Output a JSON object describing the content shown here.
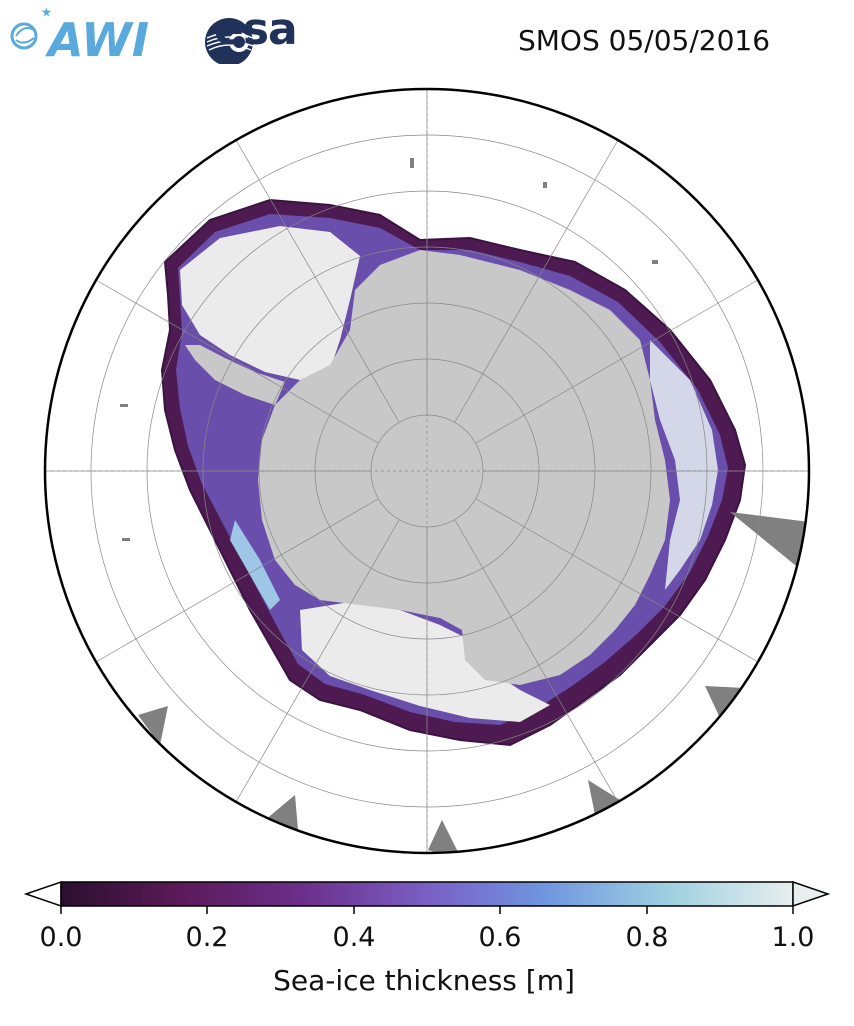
{
  "header": {
    "logo_awi_text": "AWI",
    "logo_esa_text": "esa",
    "title": "SMOS 05/05/2016"
  },
  "map": {
    "projection": "south-polar-stereographic",
    "land_color": "#c8c8c8",
    "ice_shelf_color": "#ebebeb",
    "missing_data_color": "#808080",
    "ocean_color": "#ffffff"
  },
  "colorbar": {
    "label": "Sea-ice thickness [m]",
    "min": 0.0,
    "max": 1.0,
    "extend": "both",
    "colormap": [
      "#2b0f2e",
      "#5a1a58",
      "#6b2f8a",
      "#7a5fc4",
      "#6f95e0",
      "#9ed0e0",
      "#e8eeee"
    ],
    "ticks": [
      "0.0",
      "0.2",
      "0.4",
      "0.6",
      "0.8",
      "1.0"
    ]
  }
}
